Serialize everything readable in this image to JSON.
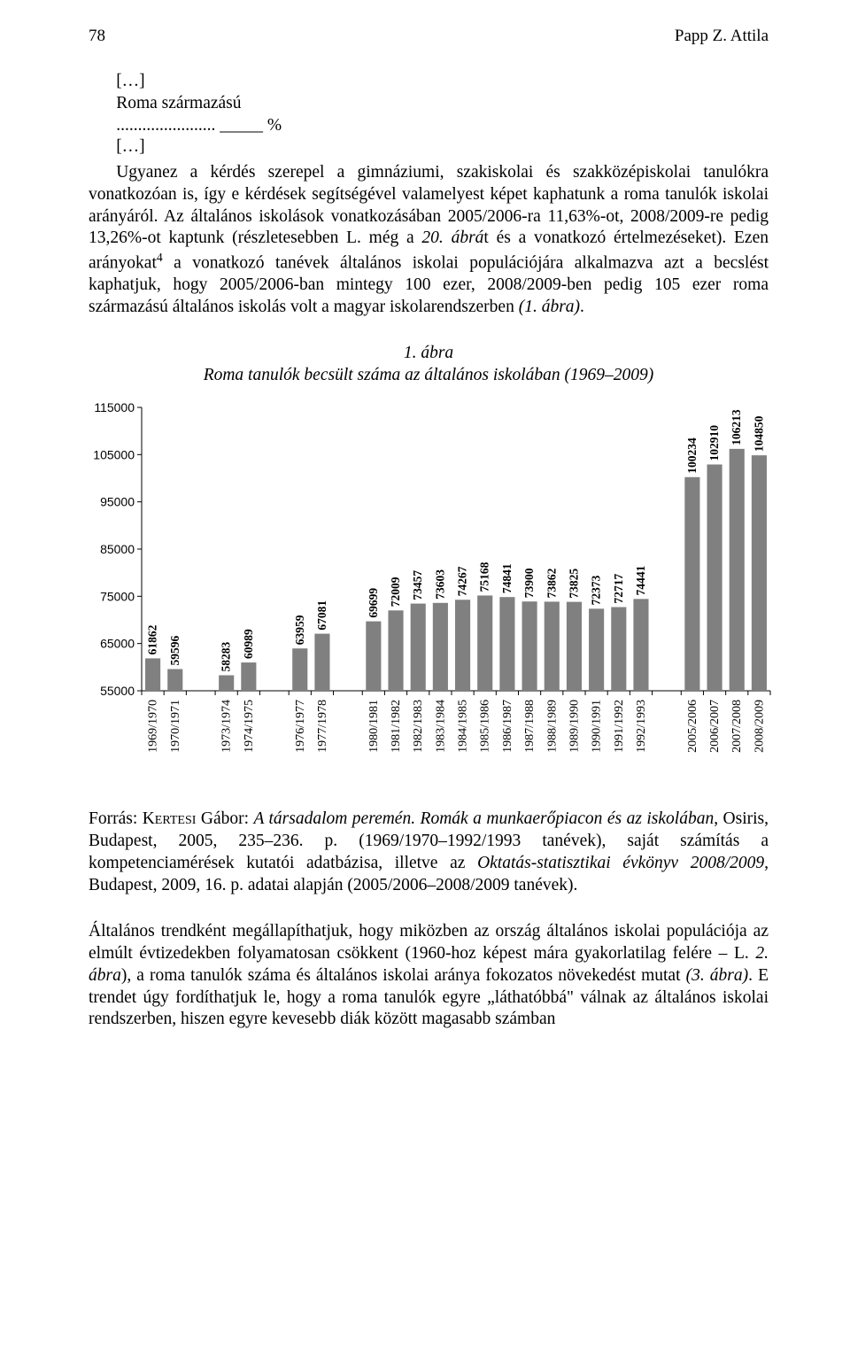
{
  "header": {
    "page_no": "78",
    "author": "Papp Z. Attila"
  },
  "pre": {
    "l1": "[…]",
    "l2": "Roma származású",
    "l3": "....................... _____ %",
    "l4": "[…]"
  },
  "para1_a": "Ugyanez a kérdés szerepel a gimnáziumi, szakiskolai és szakközépiskolai tanulókra vonatkozóan is, így e kérdések segítségével valamelyest képet kaphatunk a roma tanulók iskolai arányáról. Az általános iskolások vonatkozásában 2005/2006-ra 11,63%-ot, 2008/2009-re pedig 13,26%-ot kaptunk (részletesebben L. még a ",
  "para1_b": "20. ábrá",
  "para1_c": "t és a vonatkozó értelmezéseket). Ezen arányokat",
  "fn_mark": "4",
  "para1_d": " a vonatkozó tanévek általános iskolai populációjára alkalmazva azt a becslést kaphatjuk, hogy 2005/2006-ban mintegy 100 ezer, 2008/2009-ben pedig 105 ezer roma származású általános iskolás volt a magyar iskolarendszerben ",
  "para1_e": "(1. ábra)",
  "para1_f": ".",
  "caption": {
    "num": "1. ábra",
    "title": "Roma tanulók becsült száma az általános iskolában (1969–2009)"
  },
  "chart": {
    "type": "bar",
    "background_color": "#ffffff",
    "bar_color": "#808080",
    "axis_color": "#000000",
    "label_font_weight": "bold",
    "label_fontsize": 13.5,
    "xlabel_fontsize": 14,
    "ylim": [
      55000,
      115000
    ],
    "ytick_step": 10000,
    "yticks": [
      55000,
      65000,
      75000,
      85000,
      95000,
      105000,
      115000
    ],
    "bar_width": 0.68,
    "groups": [
      {
        "labels": [
          "1969/1970",
          "1970/1971"
        ],
        "values": [
          61862,
          59596
        ]
      },
      {
        "labels": [
          "1973/1974",
          "1974/1975"
        ],
        "values": [
          58283,
          60989
        ]
      },
      {
        "labels": [
          "1976/1977",
          "1977/1978"
        ],
        "values": [
          63959,
          67081
        ]
      },
      {
        "labels": [
          "1980/1981",
          "1981/1982",
          "1982/1983",
          "1983/1984",
          "1984/1985",
          "1985/1986",
          "1986/1987",
          "1987/1988",
          "1988/1989",
          "1989/1990",
          "1990/1991",
          "1991/1992",
          "1992/1993"
        ],
        "values": [
          69699,
          72009,
          73457,
          73603,
          74267,
          75168,
          74841,
          73900,
          73862,
          73825,
          72373,
          72717,
          74441
        ]
      },
      {
        "labels": [
          "2005/2006",
          "2006/2007",
          "2007/2008",
          "2008/2009"
        ],
        "values": [
          100234,
          102910,
          106213,
          104850
        ]
      }
    ]
  },
  "source": {
    "a": "Forrás: K",
    "sc": "ertesi",
    "b": " Gábor: ",
    "it1": "A társadalom peremén. Romák a munkaerőpiacon és az iskolában",
    "c": ", Osiris, Budapest, 2005, 235–236. p. (1969/1970–1992/1993 tanévek), saját számítás a kompetenciamérések kutatói adatbázisa, illetve az ",
    "it2": "Oktatás-statisztikai évkönyv 2008/2009,",
    "d": " Budapest, 2009, 16. p. adatai alapján (2005/2006–2008/2009 tanévek)."
  },
  "para2_a": "Általános trendként megállapíthatjuk, hogy miközben az ország általános iskolai populációja az elmúlt évtizedekben folyamatosan csökkent (1960-hoz képest mára gyakorlatilag felére – L. ",
  "para2_b": "2. ábra",
  "para2_c": "), a roma tanulók száma és általános iskolai aránya fokozatos növekedést mutat ",
  "para2_d": "(3. ábra)",
  "para2_e": ". E trendet úgy fordíthatjuk le, hogy a roma tanulók egyre „láthatóbbá\" válnak az általános iskolai rendszerben, hiszen egyre kevesebb diák között magasabb számban"
}
